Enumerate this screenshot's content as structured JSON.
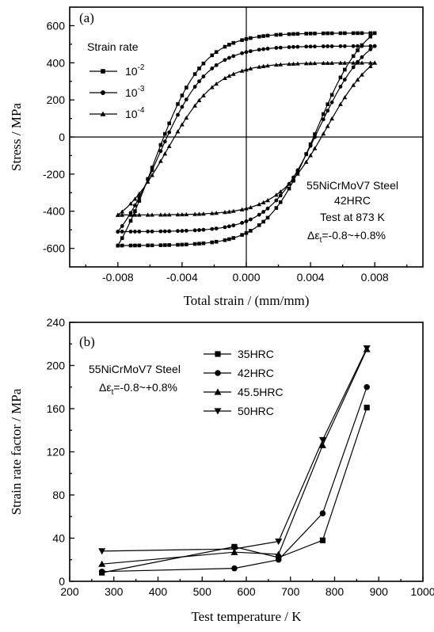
{
  "chart_data": [
    {
      "panel": "(a)",
      "type": "line",
      "xlabel": "Total strain / (mm/mm)",
      "ylabel": "Stress / MPa",
      "xlim": [
        -0.011,
        0.011
      ],
      "ylim": [
        -700,
        700
      ],
      "xticks": [
        -0.008,
        -0.004,
        0.0,
        0.004,
        0.008
      ],
      "xtick_labels": [
        "-0.008",
        "-0.004",
        "0.000",
        "0.004",
        "0.008"
      ],
      "yticks": [
        -600,
        -400,
        -200,
        0,
        200,
        400,
        600
      ],
      "legend_title": "Strain rate",
      "legend_placement": "top-left",
      "annotations": [
        "55NiCrMoV7 Steel",
        "42HRC",
        "Test at 873 K",
        "Δε",
        "t",
        "=-0.8~+0.8%"
      ],
      "series": [
        {
          "name": "10",
          "name_exp": "-2",
          "marker": "square",
          "upper_peak": 560,
          "lower_peak": -585,
          "yield_drop": 400,
          "x_at_zero_up": -0.0058,
          "x_at_zero_down": 0.0044
        },
        {
          "name": "10",
          "name_exp": "-3",
          "marker": "circle",
          "upper_peak": 490,
          "lower_peak": -510,
          "yield_drop": 390,
          "x_at_zero_up": -0.0055,
          "x_at_zero_down": 0.0045
        },
        {
          "name": "10",
          "name_exp": "-4",
          "marker": "triangle-up",
          "upper_peak": 400,
          "lower_peak": -420,
          "yield_drop": 330,
          "x_at_zero_up": -0.0049,
          "x_at_zero_down": 0.005
        }
      ]
    },
    {
      "panel": "(b)",
      "type": "line",
      "xlabel": "Test temperature / K",
      "ylabel": "Strain rate factor / MPa",
      "xlim": [
        200,
        1000
      ],
      "ylim": [
        0,
        240
      ],
      "xticks": [
        200,
        300,
        400,
        500,
        600,
        700,
        800,
        900,
        1000
      ],
      "yticks": [
        0,
        40,
        80,
        120,
        160,
        200,
        240
      ],
      "x": [
        273,
        573,
        673,
        773,
        873
      ],
      "legend_placement": "top-center",
      "annotations": [
        "55NiCrMoV7 Steel",
        "Δε",
        "t",
        "=-0.8~+0.8%"
      ],
      "series": [
        {
          "name": "35HRC",
          "marker": "square",
          "values": [
            8,
            32,
            22,
            38,
            161
          ]
        },
        {
          "name": "42HRC",
          "marker": "circle",
          "values": [
            9,
            12,
            20,
            63,
            180
          ]
        },
        {
          "name": "45.5HRC",
          "marker": "triangle-up",
          "values": [
            16,
            27,
            25,
            126,
            215
          ]
        },
        {
          "name": "50HRC",
          "marker": "triangle-down",
          "values": [
            28,
            30,
            37,
            131,
            216
          ]
        }
      ]
    }
  ]
}
